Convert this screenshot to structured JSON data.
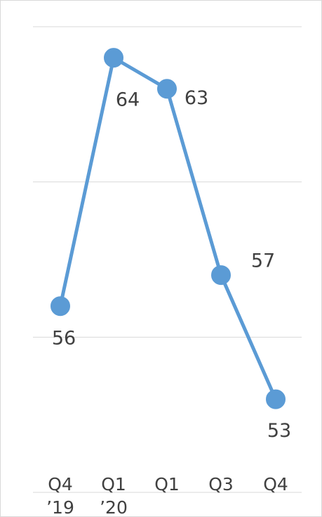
{
  "chart_data": {
    "type": "line",
    "categories": [
      [
        "Q4",
        "’19"
      ],
      [
        "Q1",
        "’20"
      ],
      [
        "Q1"
      ],
      [
        "Q3"
      ],
      [
        "Q4"
      ]
    ],
    "series": [
      {
        "values": [
          56,
          64,
          63,
          57,
          53
        ]
      }
    ],
    "ylim": [
      50,
      65
    ],
    "grid": true,
    "legend": "none",
    "colors": {
      "series": "#5b9bd5",
      "grid": "#d9d9d9",
      "text": "#404040",
      "border": "#d9d9d9"
    }
  }
}
